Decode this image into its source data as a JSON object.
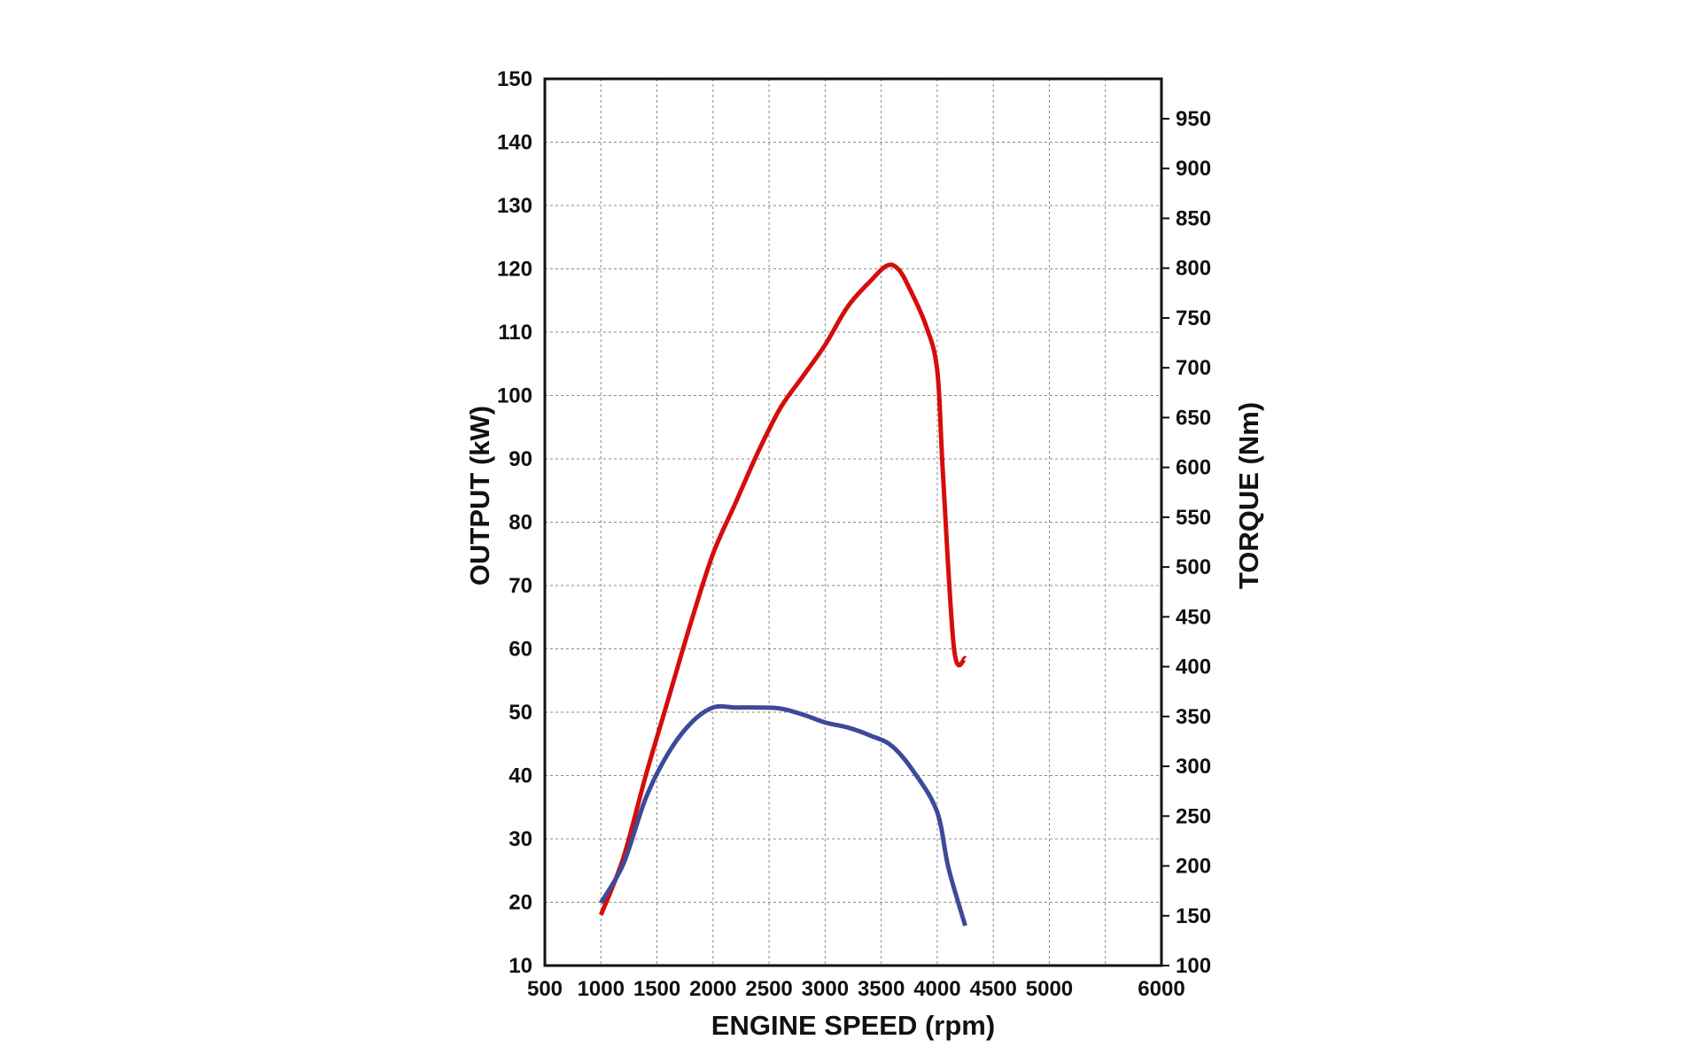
{
  "chart_data": {
    "type": "line",
    "xlabel": "ENGINE SPEED  (rpm)",
    "ylabel": "OUTPUT  (kW)",
    "y2label": "TORQUE  (Nm)",
    "xlim": [
      500,
      6000
    ],
    "ylim": [
      10,
      150
    ],
    "y2lim": [
      100,
      990
    ],
    "x_ticks": [
      500,
      1000,
      1500,
      2000,
      2500,
      3000,
      3500,
      4000,
      4500,
      5000,
      5500,
      6000
    ],
    "x_tick_labels": [
      "500",
      "1000",
      "1500",
      "2000",
      "2500",
      "3000",
      "3500",
      "4000",
      "4500",
      "5000",
      "",
      "6000"
    ],
    "y_ticks": [
      10,
      20,
      30,
      40,
      50,
      60,
      70,
      80,
      90,
      100,
      110,
      120,
      130,
      140,
      150
    ],
    "y_tick_labels": [
      "10",
      "20",
      "30",
      "40",
      "50",
      "60",
      "70",
      "80",
      "90",
      "100",
      "110",
      "120",
      "130",
      "140",
      "150"
    ],
    "y2_ticks": [
      100,
      150,
      200,
      250,
      300,
      350,
      400,
      450,
      500,
      550,
      600,
      650,
      700,
      750,
      800,
      850,
      900,
      950
    ],
    "y2_tick_labels": [
      "100",
      "150",
      "200",
      "250",
      "300",
      "350",
      "400",
      "450",
      "500",
      "550",
      "600",
      "650",
      "700",
      "750",
      "800",
      "850",
      "900",
      "950"
    ],
    "grid": true,
    "legend": "none",
    "series": [
      {
        "axis": "left",
        "color": "#d40d0d",
        "x": [
          1000,
          1200,
          1400,
          1600,
          1800,
          2000,
          2200,
          2400,
          2600,
          2800,
          3000,
          3200,
          3400,
          3550,
          3650,
          3750,
          3900,
          4000,
          4050,
          4150,
          4250
        ],
        "values": [
          18,
          27,
          40,
          52,
          64,
          75,
          83,
          91,
          98,
          103,
          108,
          114,
          118,
          120.5,
          120,
          117,
          111,
          104,
          88,
          60,
          58.5
        ]
      },
      {
        "axis": "right",
        "color": "#3d4a99",
        "x": [
          1000,
          1200,
          1400,
          1600,
          1800,
          2000,
          2200,
          2400,
          2600,
          2800,
          3000,
          3200,
          3400,
          3600,
          3800,
          4000,
          4100,
          4250
        ],
        "values": [
          163,
          202,
          268,
          313,
          343,
          359,
          359,
          359,
          358,
          352,
          344,
          339,
          331,
          320,
          293,
          254,
          198,
          140
        ]
      }
    ]
  }
}
